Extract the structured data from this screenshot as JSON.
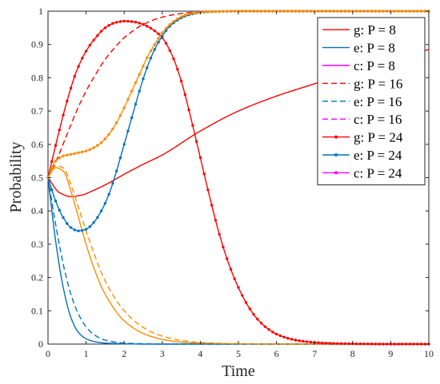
{
  "chart_data": {
    "type": "line",
    "title": "",
    "xlabel": "Time",
    "ylabel": "Probability",
    "xlim": [
      0,
      10
    ],
    "ylim": [
      0,
      1
    ],
    "xticks": [
      "0",
      "1",
      "2",
      "3",
      "4",
      "5",
      "6",
      "7",
      "8",
      "9",
      "10"
    ],
    "yticks": [
      "0",
      "0.1",
      "0.2",
      "0.3",
      "0.4",
      "0.5",
      "0.6",
      "0.7",
      "0.8",
      "0.9",
      "1"
    ],
    "grid": false,
    "legend_position": "top-right",
    "colors": {
      "g": "#ff0000",
      "e": "#0072bd",
      "c": "#ff00ff",
      "c_plotted": "#ff8c00"
    },
    "series": [
      {
        "name": "g: P = 8",
        "role": "g",
        "style": "solid",
        "markers": false,
        "x": [
          0,
          0.3,
          0.6,
          0.9,
          1.2,
          1.5,
          2,
          2.5,
          3,
          4,
          5,
          6,
          7,
          8,
          9,
          10
        ],
        "y": [
          0.5,
          0.455,
          0.443,
          0.448,
          0.462,
          0.478,
          0.51,
          0.54,
          0.568,
          0.64,
          0.7,
          0.745,
          0.782,
          0.818,
          0.852,
          0.885
        ]
      },
      {
        "name": "e: P = 8",
        "role": "e",
        "style": "solid",
        "markers": false,
        "x": [
          0,
          0.2,
          0.4,
          0.6,
          0.8,
          1,
          1.2,
          1.5,
          2,
          2.5,
          3,
          4,
          10
        ],
        "y": [
          0.5,
          0.31,
          0.17,
          0.08,
          0.035,
          0.016,
          0.008,
          0.003,
          0.001,
          0,
          0,
          0,
          0
        ]
      },
      {
        "name": "c: P = 8",
        "role": "c",
        "style": "solid",
        "markers": false,
        "x": [
          0,
          0.2,
          0.4,
          0.6,
          0.8,
          1,
          1.2,
          1.5,
          2,
          2.5,
          3,
          3.5,
          4,
          5,
          6,
          10
        ],
        "y": [
          0.5,
          0.53,
          0.52,
          0.46,
          0.38,
          0.3,
          0.23,
          0.15,
          0.07,
          0.032,
          0.014,
          0.006,
          0.003,
          0.001,
          0,
          0
        ]
      },
      {
        "name": "g: P = 16",
        "role": "g",
        "style": "dashed",
        "markers": false,
        "x": [
          0,
          0.25,
          0.5,
          0.75,
          1,
          1.25,
          1.5,
          1.75,
          2,
          2.5,
          3,
          3.5,
          4,
          5,
          10
        ],
        "y": [
          0.5,
          0.56,
          0.63,
          0.7,
          0.76,
          0.81,
          0.855,
          0.89,
          0.92,
          0.96,
          0.982,
          0.993,
          0.998,
          1,
          1
        ]
      },
      {
        "name": "e: P = 16",
        "role": "e",
        "style": "dashed",
        "markers": false,
        "x": [
          0,
          0.2,
          0.4,
          0.6,
          0.8,
          1,
          1.2,
          1.5,
          2,
          2.5,
          3,
          4,
          10
        ],
        "y": [
          0.5,
          0.36,
          0.24,
          0.15,
          0.09,
          0.052,
          0.029,
          0.012,
          0.003,
          0.001,
          0,
          0,
          0
        ]
      },
      {
        "name": "c: P = 16",
        "role": "c",
        "style": "dashed",
        "markers": false,
        "x": [
          0,
          0.2,
          0.4,
          0.6,
          0.8,
          1,
          1.2,
          1.5,
          2,
          2.5,
          3,
          3.5,
          4,
          5,
          6,
          10
        ],
        "y": [
          0.5,
          0.535,
          0.53,
          0.48,
          0.41,
          0.34,
          0.275,
          0.19,
          0.1,
          0.05,
          0.024,
          0.011,
          0.005,
          0.001,
          0,
          0
        ]
      },
      {
        "name": "g: P = 24",
        "role": "g",
        "style": "solid",
        "markers": true,
        "x": [
          0,
          0.25,
          0.5,
          0.75,
          1,
          1.25,
          1.5,
          1.75,
          2,
          2.25,
          2.5,
          2.75,
          3,
          3.25,
          3.5,
          3.75,
          4,
          4.25,
          4.5,
          4.75,
          5,
          5.25,
          5.5,
          5.75,
          6,
          6.5,
          7,
          7.5,
          8,
          9,
          10
        ],
        "y": [
          0.5,
          0.62,
          0.73,
          0.82,
          0.88,
          0.92,
          0.95,
          0.965,
          0.97,
          0.968,
          0.96,
          0.945,
          0.92,
          0.87,
          0.79,
          0.68,
          0.56,
          0.44,
          0.33,
          0.24,
          0.17,
          0.115,
          0.075,
          0.048,
          0.03,
          0.012,
          0.005,
          0.002,
          0.001,
          0,
          0
        ]
      },
      {
        "name": "e: P = 24",
        "role": "e",
        "style": "solid",
        "markers": true,
        "x": [
          0,
          0.2,
          0.4,
          0.6,
          0.8,
          1,
          1.2,
          1.4,
          1.6,
          1.8,
          2,
          2.2,
          2.4,
          2.6,
          2.8,
          3,
          3.2,
          3.4,
          3.6,
          3.8,
          4,
          4.5,
          5,
          6,
          7,
          8,
          9,
          10
        ],
        "y": [
          0.5,
          0.43,
          0.38,
          0.35,
          0.34,
          0.345,
          0.365,
          0.4,
          0.45,
          0.52,
          0.6,
          0.68,
          0.76,
          0.83,
          0.885,
          0.925,
          0.955,
          0.973,
          0.985,
          0.992,
          0.996,
          0.999,
          1,
          1,
          1,
          1,
          1,
          1
        ]
      },
      {
        "name": "c: P = 24",
        "role": "c",
        "style": "solid",
        "markers": true,
        "x": [
          0,
          0.2,
          0.4,
          0.6,
          0.8,
          1,
          1.2,
          1.4,
          1.6,
          1.8,
          2,
          2.2,
          2.4,
          2.6,
          2.8,
          3,
          3.2,
          3.4,
          3.6,
          3.8,
          4,
          4.5,
          5,
          6,
          7,
          8,
          9,
          10
        ],
        "y": [
          0.5,
          0.55,
          0.565,
          0.57,
          0.575,
          0.58,
          0.59,
          0.605,
          0.63,
          0.665,
          0.71,
          0.76,
          0.81,
          0.86,
          0.9,
          0.935,
          0.96,
          0.977,
          0.988,
          0.994,
          0.997,
          0.999,
          1,
          1,
          1,
          1,
          1,
          1
        ]
      }
    ]
  }
}
